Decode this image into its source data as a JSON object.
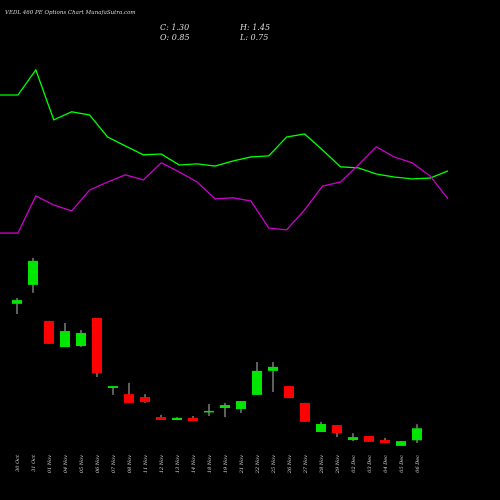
{
  "chart_data": {
    "type": "candlestick",
    "title": "VEDL 460 PE Options Chart MunafaSutra.com",
    "ohlc_labels": {
      "close": "C: 1.30",
      "high": "H: 1.45",
      "open": "O: 0.85",
      "low": "L: 0.75"
    },
    "categories": [
      "30 Oct",
      "31 Oct",
      "01 Nov",
      "04 Nov",
      "05 Nov",
      "06 Nov",
      "07 Nov",
      "08 Nov",
      "11 Nov",
      "12 Nov",
      "13 Nov",
      "14 Nov",
      "18 Nov",
      "19 Nov",
      "21 Nov",
      "22 Nov",
      "25 Nov",
      "26 Nov",
      "27 Nov",
      "28 Nov",
      "29 Nov",
      "02 Dec",
      "03 Dec",
      "04 Dec",
      "05 Dec",
      "06 Dec"
    ],
    "open": [
      5.96,
      6.67,
      5.32,
      4.34,
      4.38,
      5.43,
      2.81,
      2.58,
      2.47,
      1.72,
      1.61,
      1.69,
      1.91,
      2.06,
      2.02,
      2.55,
      3.45,
      2.88,
      2.25,
      1.16,
      1.42,
      0.86,
      1.01,
      0.86,
      0.64,
      0.85
    ],
    "high": [
      6.18,
      7.68,
      5.32,
      5.24,
      4.98,
      5.43,
      2.88,
      3.0,
      2.58,
      1.8,
      1.72,
      1.76,
      2.21,
      2.25,
      2.32,
      3.78,
      3.78,
      2.88,
      2.25,
      1.54,
      1.42,
      1.12,
      1.01,
      0.94,
      0.82,
      1.45
    ],
    "low": [
      5.58,
      6.37,
      4.46,
      4.34,
      4.34,
      3.22,
      2.55,
      2.25,
      2.25,
      1.61,
      1.61,
      1.57,
      1.76,
      1.72,
      1.87,
      2.55,
      2.66,
      2.43,
      1.54,
      1.16,
      0.97,
      0.82,
      0.79,
      0.75,
      0.64,
      0.75
    ],
    "close": [
      6.1,
      7.57,
      4.46,
      4.94,
      4.87,
      3.37,
      2.88,
      2.25,
      2.28,
      1.61,
      1.69,
      1.57,
      1.95,
      2.17,
      2.32,
      3.45,
      3.6,
      2.43,
      1.54,
      1.46,
      1.12,
      0.97,
      0.79,
      0.75,
      0.82,
      1.3
    ],
    "up_color": "#00e600",
    "down_color": "#ff0000",
    "overlays": [
      {
        "color": "#00ff00",
        "values": [
          13.78,
          13.78,
          14.72,
          12.85,
          13.15,
          13.03,
          12.21,
          11.87,
          11.54,
          11.57,
          11.16,
          11.2,
          11.12,
          11.31,
          11.46,
          11.5,
          12.21,
          12.32,
          11.72,
          11.09,
          11.05,
          10.82,
          10.71,
          10.64,
          10.67,
          10.94
        ]
      },
      {
        "color": "#cc00cc",
        "values": [
          8.61,
          8.61,
          10.0,
          9.66,
          9.44,
          10.22,
          10.52,
          10.79,
          10.6,
          11.24,
          10.9,
          10.52,
          9.89,
          9.93,
          9.81,
          8.8,
          8.73,
          9.48,
          10.37,
          10.52,
          11.16,
          11.84,
          11.46,
          11.24,
          10.75,
          9.89
        ]
      }
    ],
    "ylim": [
      0,
      17
    ]
  }
}
